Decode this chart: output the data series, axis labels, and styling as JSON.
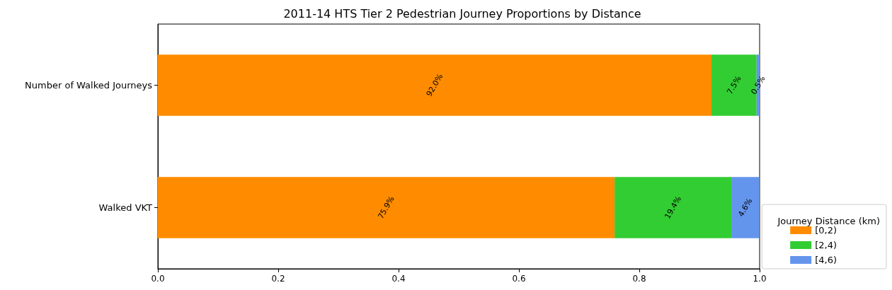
{
  "chart_data": {
    "type": "bar",
    "title": "2011-14 HTS Tier 2 Pedestrian Journey Proportions by Distance",
    "orientation": "horizontal",
    "stacked": true,
    "categories": [
      "Number of Walked Journeys",
      "Walked VKT"
    ],
    "series": [
      {
        "name": "[0,2)",
        "color": "#ff8c00",
        "values": [
          0.92,
          0.759
        ],
        "value_labels": [
          "92.0%",
          "75.9%"
        ]
      },
      {
        "name": "[2,4)",
        "color": "#32cd32",
        "values": [
          0.075,
          0.194
        ],
        "value_labels": [
          "7.5%",
          "19.4%"
        ]
      },
      {
        "name": "[4,6)",
        "color": "#6495ed",
        "values": [
          0.005,
          0.046
        ],
        "value_labels": [
          "0.5%",
          "4.6%"
        ]
      }
    ],
    "legend_title": "Journey Distance (km)",
    "legend": "bottom right",
    "grid": false,
    "xlim": [
      0,
      1
    ],
    "xticks": [
      {
        "value": 0,
        "label": "0.0"
      },
      0.2,
      0.4,
      0.6,
      0.8,
      {
        "value": 1,
        "label": "1.0"
      }
    ]
  }
}
